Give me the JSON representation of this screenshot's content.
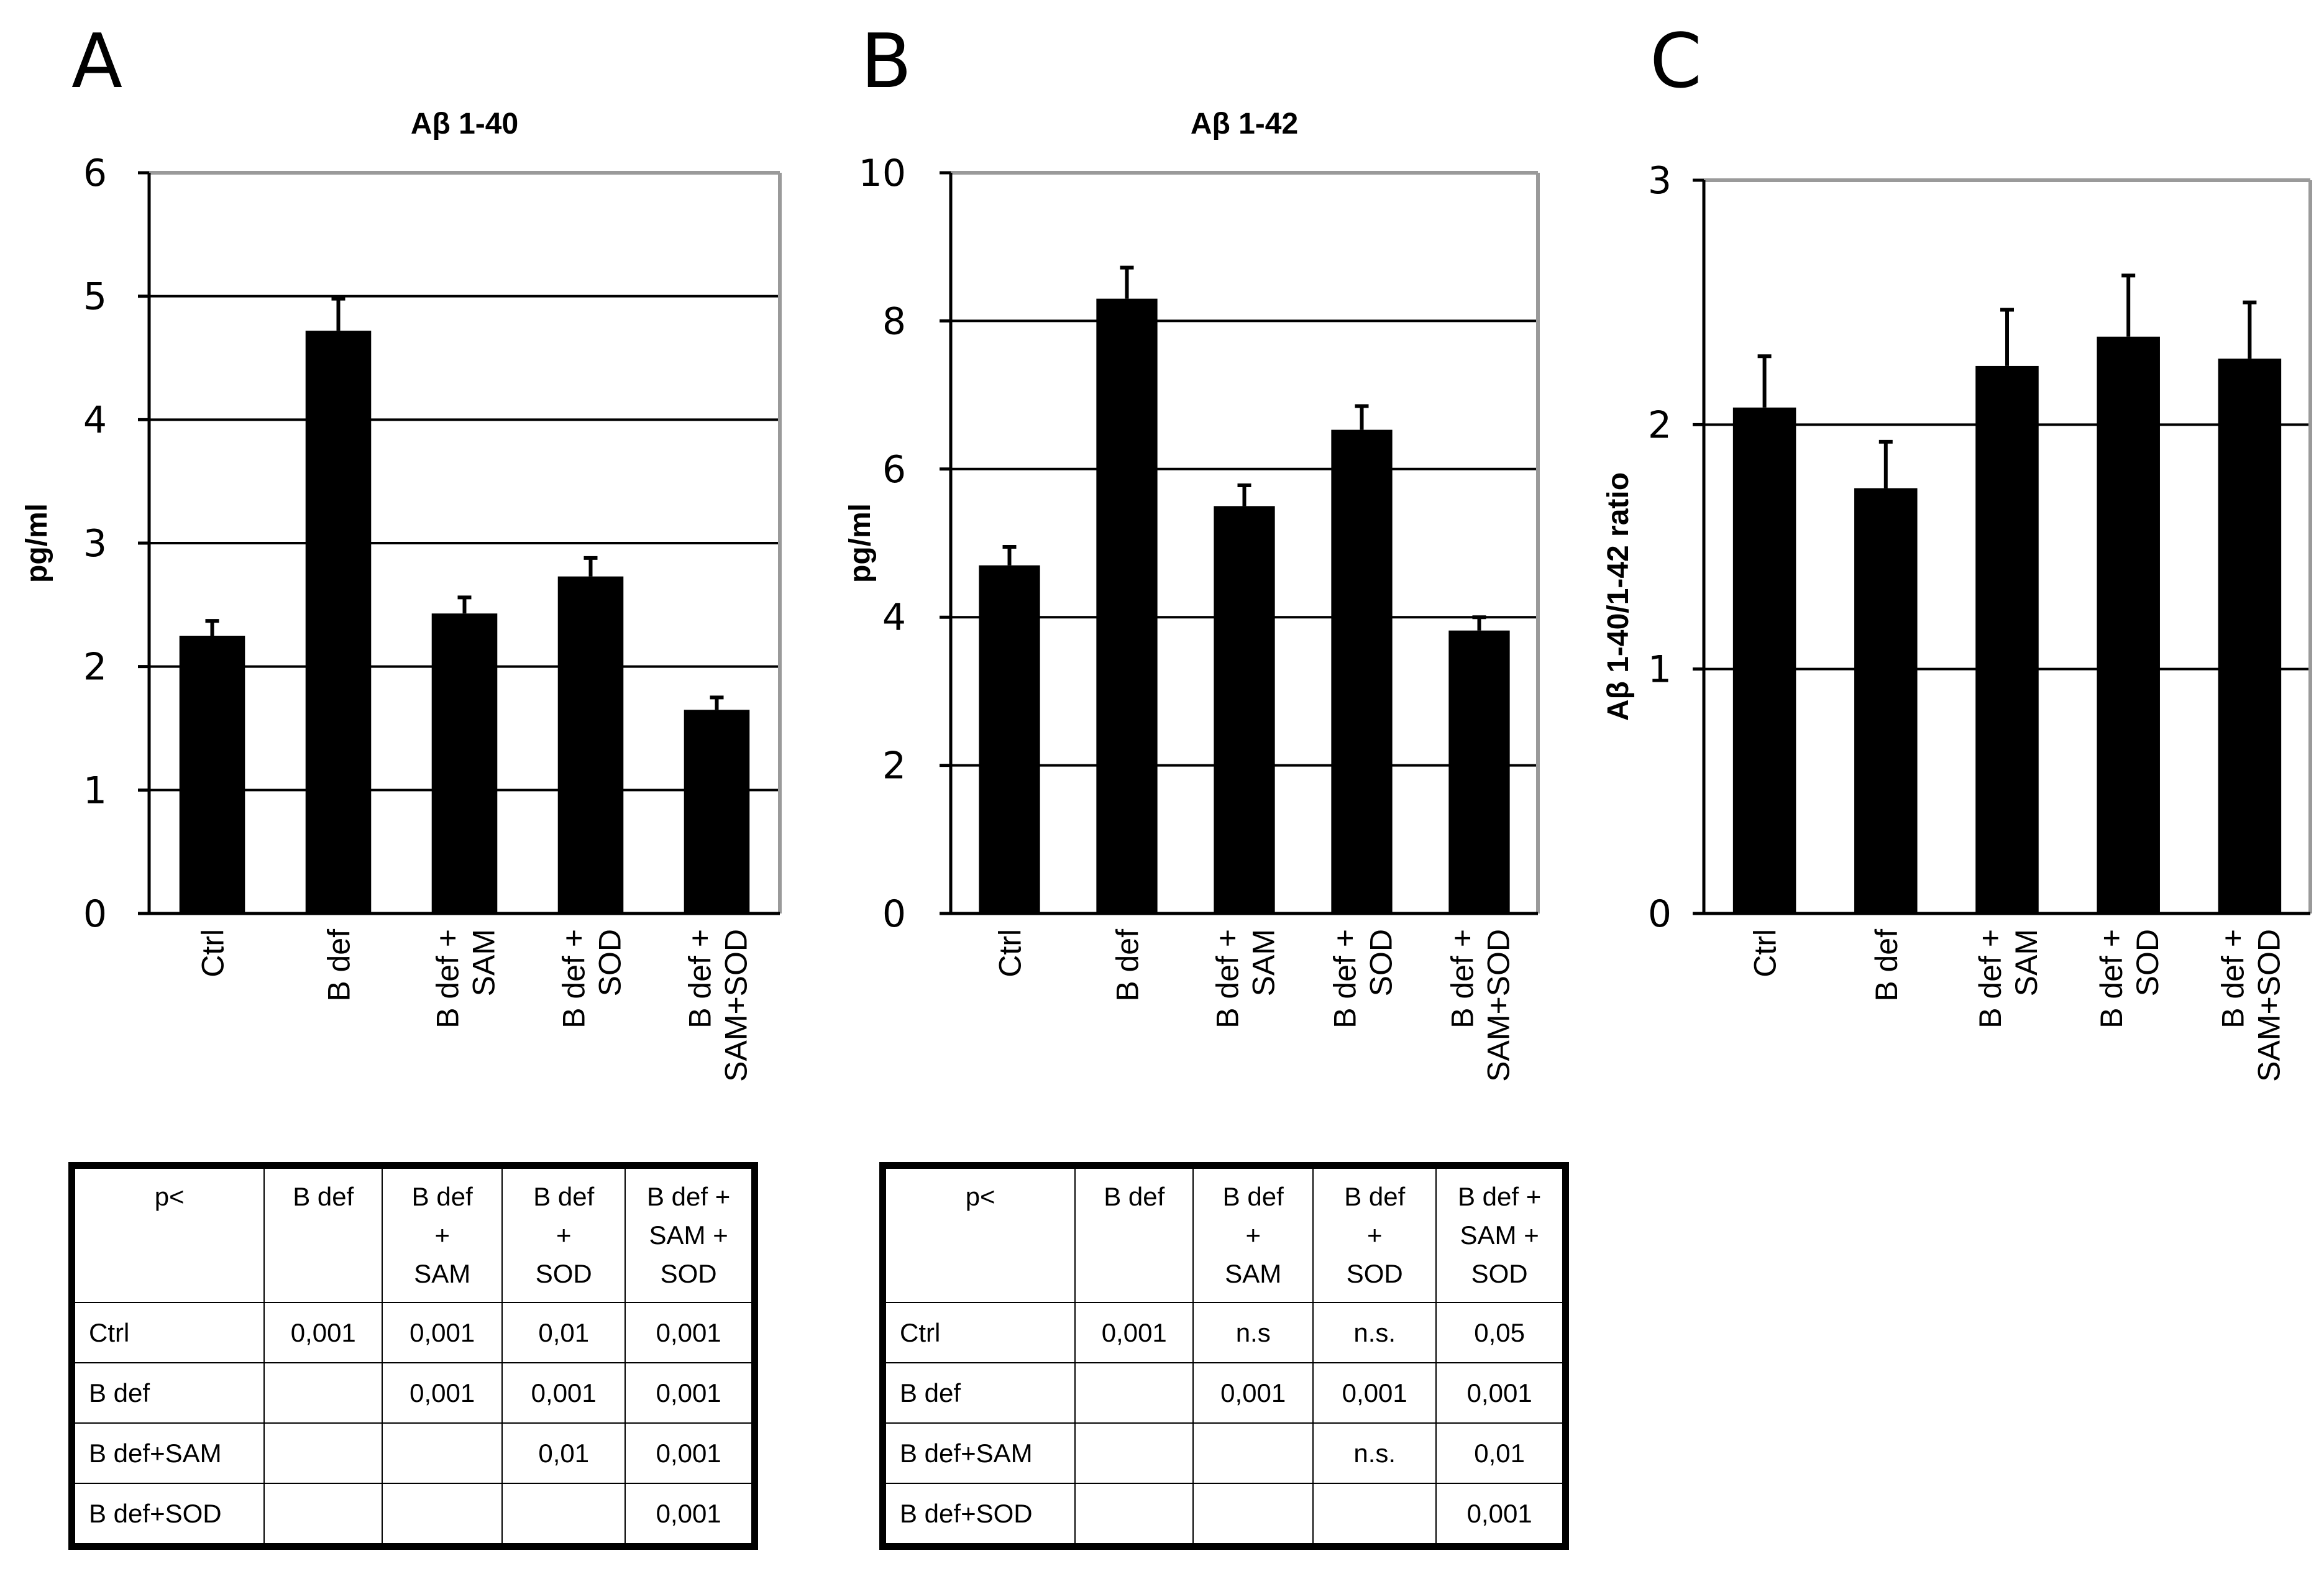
{
  "panels": {
    "a": "A",
    "b": "B",
    "c": "C"
  },
  "chart_data": [
    {
      "type": "bar",
      "panel": "A",
      "title": "Aβ 1-40",
      "ylabel": "pg/ml",
      "xlabel": "",
      "ylim": [
        0,
        6
      ],
      "yticks": [
        0,
        1,
        2,
        3,
        4,
        5,
        6
      ],
      "grid": true,
      "categories": [
        "Ctrl",
        "B def",
        "B def + SAM",
        "B def + SOD",
        "B def + SAM+SOD"
      ],
      "category_lines": [
        [
          "Ctrl"
        ],
        [
          "B def"
        ],
        [
          "B def +",
          "SAM"
        ],
        [
          "B def +",
          "SOD"
        ],
        [
          "B def +",
          "SAM+SOD"
        ]
      ],
      "values": [
        2.25,
        4.72,
        2.43,
        2.73,
        1.65
      ],
      "errors": [
        0.12,
        0.26,
        0.13,
        0.15,
        0.1
      ],
      "color": "#000000"
    },
    {
      "type": "bar",
      "panel": "B",
      "title": "Aβ 1-42",
      "ylabel": "pg/ml",
      "xlabel": "",
      "ylim": [
        0,
        10
      ],
      "yticks": [
        0,
        2,
        4,
        6,
        8,
        10
      ],
      "grid": true,
      "categories": [
        "Ctrl",
        "B def",
        "B def + SAM",
        "B def + SOD",
        "B def + SAM+SOD"
      ],
      "category_lines": [
        [
          "Ctrl"
        ],
        [
          "B def"
        ],
        [
          "B def +",
          "SAM"
        ],
        [
          "B def +",
          "SOD"
        ],
        [
          "B def +",
          "SAM+SOD"
        ]
      ],
      "values": [
        4.7,
        8.3,
        5.5,
        6.53,
        3.82
      ],
      "errors": [
        0.25,
        0.42,
        0.28,
        0.32,
        0.18
      ],
      "color": "#000000"
    },
    {
      "type": "bar",
      "panel": "C",
      "title": "",
      "ylabel": "Aβ 1-40/1-42 ratio",
      "xlabel": "",
      "ylim": [
        0,
        3
      ],
      "yticks": [
        0,
        1,
        2,
        3
      ],
      "grid": true,
      "categories": [
        "Ctrl",
        "B def",
        "B def + SAM",
        "B def + SOD",
        "B def + SAM+SOD"
      ],
      "category_lines": [
        [
          "Ctrl"
        ],
        [
          "B def"
        ],
        [
          "B def +",
          "SAM"
        ],
        [
          "B def +",
          "SOD"
        ],
        [
          "B def +",
          "SAM+SOD"
        ]
      ],
      "values": [
        2.07,
        1.74,
        2.24,
        2.36,
        2.27
      ],
      "errors": [
        0.21,
        0.19,
        0.23,
        0.25,
        0.23
      ],
      "color": "#000000"
    }
  ],
  "tables": [
    {
      "corner": "p<",
      "columns": [
        "B def",
        "B def\n+\nSAM",
        "B def\n+\nSOD",
        "B def +\nSAM +\nSOD"
      ],
      "rows": [
        {
          "label": "Ctrl",
          "cells": [
            "0,001",
            "0,001",
            "0,01",
            "0,001"
          ]
        },
        {
          "label": "B def",
          "cells": [
            "",
            "0,001",
            "0,001",
            "0,001"
          ]
        },
        {
          "label": "B def+SAM",
          "cells": [
            "",
            "",
            "0,01",
            "0,001"
          ]
        },
        {
          "label": "B def+SOD",
          "cells": [
            "",
            "",
            "",
            "0,001"
          ]
        }
      ]
    },
    {
      "corner": "p<",
      "columns": [
        "B def",
        "B def\n+\nSAM",
        "B def\n+\nSOD",
        "B def +\nSAM +\nSOD"
      ],
      "rows": [
        {
          "label": "Ctrl",
          "cells": [
            "0,001",
            "n.s",
            "n.s.",
            "0,05"
          ]
        },
        {
          "label": "B def",
          "cells": [
            "",
            "0,001",
            "0,001",
            "0,001"
          ]
        },
        {
          "label": "B def+SAM",
          "cells": [
            "",
            "",
            "n.s.",
            "0,01"
          ]
        },
        {
          "label": "B def+SOD",
          "cells": [
            "",
            "",
            "",
            "0,001"
          ]
        }
      ]
    }
  ]
}
